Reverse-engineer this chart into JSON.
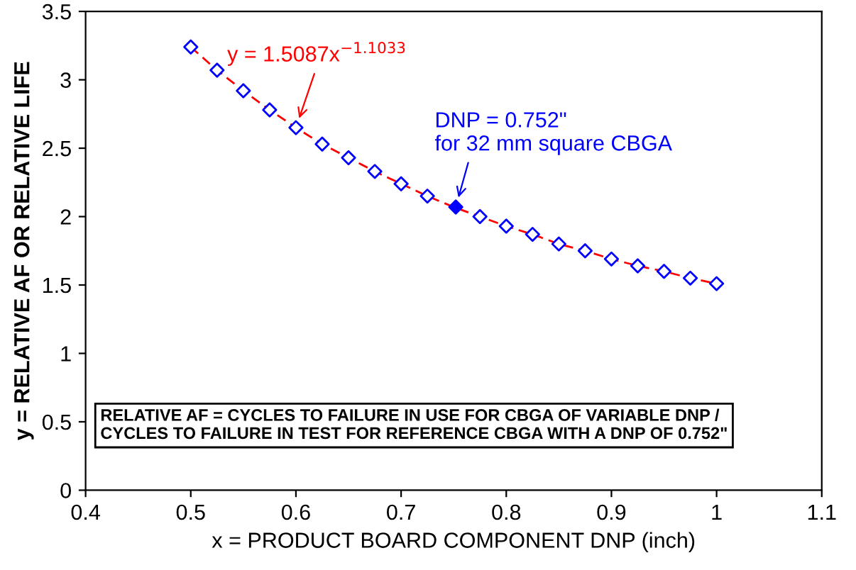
{
  "chart_data": {
    "type": "scatter",
    "xlabel": "x = PRODUCT BOARD COMPONENT DNP (inch)",
    "ylabel": "y = RELATIVE AF OR RELATIVE LIFE",
    "xlim": [
      0.4,
      1.1
    ],
    "xticks": [
      0.4,
      0.5,
      0.6,
      0.7,
      0.8,
      0.9,
      1,
      1.1
    ],
    "ylim": [
      0,
      3.5
    ],
    "yticks": [
      0,
      0.5,
      1,
      1.5,
      2,
      2.5,
      3,
      3.5
    ],
    "grid": false,
    "series": [
      {
        "type": "line",
        "color": "#ff0000",
        "line_style": "dashed",
        "marker": "none",
        "x": [
          0.5,
          0.525,
          0.55,
          0.575,
          0.6,
          0.625,
          0.65,
          0.675,
          0.7,
          0.725,
          0.75,
          0.775,
          0.8,
          0.825,
          0.85,
          0.875,
          0.9,
          0.925,
          0.95,
          0.975,
          1.0
        ],
        "values": [
          3.24,
          3.07,
          2.92,
          2.78,
          2.65,
          2.53,
          2.43,
          2.33,
          2.24,
          2.15,
          2.07,
          2.0,
          1.93,
          1.87,
          1.8,
          1.75,
          1.69,
          1.64,
          1.6,
          1.55,
          1.51
        ]
      },
      {
        "color": "#0000ff",
        "marker": "diamond",
        "x": [
          0.5,
          0.525,
          0.55,
          0.575,
          0.6,
          0.625,
          0.65,
          0.675,
          0.7,
          0.725,
          0.75,
          0.775,
          0.8,
          0.825,
          0.85,
          0.875,
          0.9,
          0.925,
          0.95,
          0.975,
          1.0
        ],
        "values": [
          3.24,
          3.07,
          2.92,
          2.78,
          2.65,
          2.53,
          2.43,
          2.33,
          2.24,
          2.15,
          null,
          2.0,
          1.93,
          1.87,
          1.8,
          1.75,
          1.69,
          1.64,
          1.6,
          1.55,
          1.51
        ]
      },
      {
        "color": "#0000ff",
        "marker": "diamond",
        "x": [
          0.752
        ],
        "values": [
          2.07
        ]
      }
    ],
    "annotations": [
      {
        "text": "y = 1.5087x$^{−1.1033}$",
        "x": 0.6,
        "y": 2.65
      },
      {
        "text": "DNP = 0.752\"\nfor 32 mm square CBGA",
        "x": 0.752,
        "y": 2.07
      },
      "RELATIVE AF = CYCLES TO FAILURE IN USE FOR CBGA OF VARIABLE DNP /\nCYCLES TO FAILURE IN TEST FOR REFERENCE CBGA WITH A DNP OF 0.752\""
    ]
  }
}
